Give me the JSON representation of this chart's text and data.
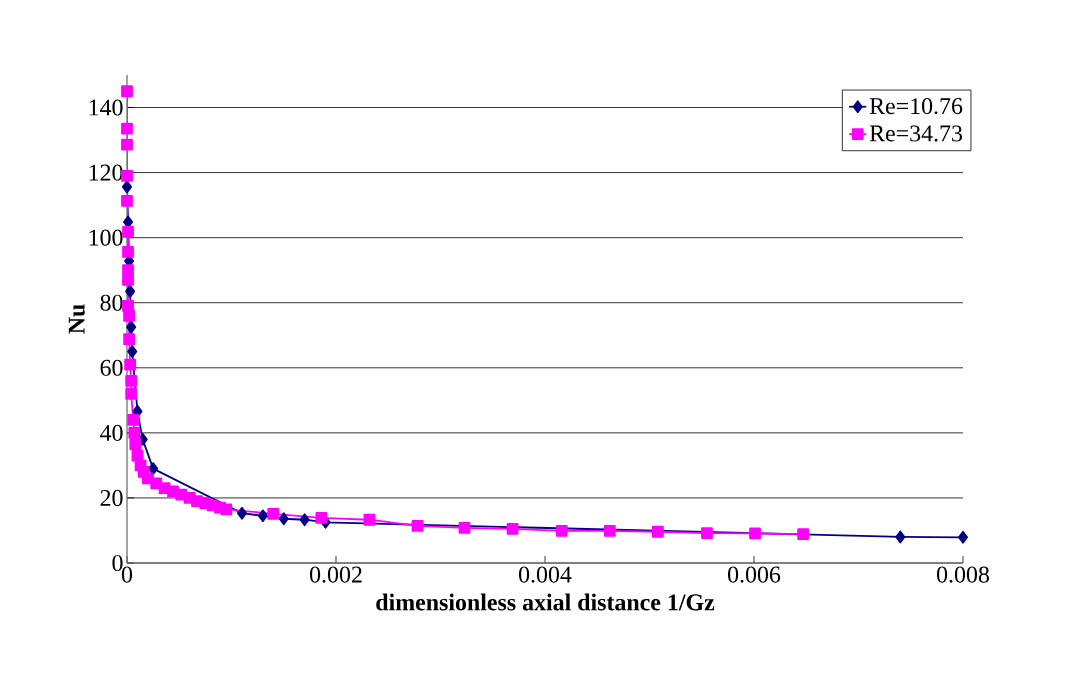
{
  "chart_data": {
    "type": "line",
    "xlabel": "dimensionless axial distance 1/Gz",
    "ylabel": "Nu",
    "xlim": [
      0,
      0.008
    ],
    "xticks": [
      0,
      0.002,
      0.004,
      0.006,
      0.008
    ],
    "ylim": [
      0,
      150
    ],
    "yticks": [
      0,
      20,
      40,
      60,
      80,
      100,
      120,
      140
    ],
    "grid": "y",
    "legend": "top right",
    "series": [
      {
        "name": "Re=10.76",
        "color": "#000080",
        "marker": "diamond",
        "x": [
          0,
          1e-05,
          2e-05,
          3e-05,
          4e-05,
          5e-05,
          0.0001,
          0.00015,
          0.00025,
          0.0004,
          0.0006,
          0.0008,
          0.0011,
          0.0013,
          0.0015,
          0.0017,
          0.0019,
          0.0028,
          0.0074,
          0.008
        ],
        "values": [
          115.6,
          104.8,
          92.8,
          83.5,
          72.5,
          65,
          46.6,
          38,
          29,
          null,
          null,
          null,
          15.3,
          14.5,
          13.6,
          13.3,
          12.5,
          null,
          8.0,
          7.9
        ]
      },
      {
        "name": "Re=34.73",
        "color": "#ff00ff",
        "marker": "square",
        "x": [
          0,
          0,
          0,
          0,
          0,
          1e-05,
          1e-05,
          1e-05,
          1e-05,
          1e-05,
          2e-05,
          2e-05,
          3e-05,
          4e-05,
          4e-05,
          6e-05,
          7e-05,
          8e-05,
          0.0001,
          0.00013,
          0.00016,
          0.0002,
          0.00028,
          0.00036,
          0.00044,
          0.00052,
          0.0006,
          0.00067,
          0.00075,
          0.00082,
          0.00089,
          0.00095,
          0.0014,
          0.00186,
          0.00232,
          0.00278,
          0.00323,
          0.00369,
          0.00416,
          0.00462,
          0.00508,
          0.00555,
          0.00601,
          0.00647
        ],
        "values": [
          145,
          133.5,
          128.6,
          119,
          111.3,
          101.8,
          95.6,
          90,
          87,
          79,
          76,
          68.8,
          61,
          56,
          52,
          44,
          40,
          36.5,
          33,
          30,
          28,
          26,
          24.5,
          23,
          22,
          21,
          20,
          19,
          18.3,
          17.7,
          17,
          16.5,
          15.1,
          13.9,
          13.3,
          11.4,
          10.8,
          10.5,
          9.9,
          9.9,
          9.6,
          9.2,
          9.1,
          8.9
        ]
      }
    ]
  }
}
